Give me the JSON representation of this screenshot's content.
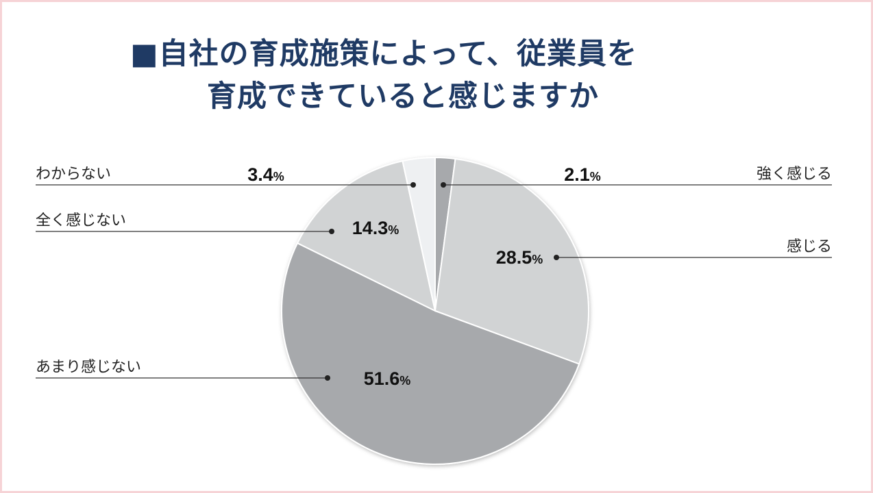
{
  "title": {
    "marker": "■",
    "line1": "自社の育成施策によって、従業員を",
    "line2": "育成できていると感じますか"
  },
  "colors": {
    "title": "#1f3a64",
    "frame": "#f6d3d6",
    "slice_strong": "#a7a9ac",
    "slice_feel": "#d1d3d4",
    "slice_not_much": "#a7a9ac",
    "slice_not_at_all": "#d1d3d4",
    "slice_unknown": "#eef0f2"
  },
  "chart_data": {
    "type": "pie",
    "title": "自社の育成施策によって、従業員を育成できていると感じますか",
    "unit": "%",
    "slices": [
      {
        "label": "強く感じる",
        "value": 2.1,
        "display": "2.1"
      },
      {
        "label": "感じる",
        "value": 28.5,
        "display": "28.5"
      },
      {
        "label": "あまり感じない",
        "value": 51.6,
        "display": "51.6"
      },
      {
        "label": "全く感じない",
        "value": 14.3,
        "display": "14.3"
      },
      {
        "label": "わからない",
        "value": 3.4,
        "display": "3.4"
      }
    ]
  }
}
